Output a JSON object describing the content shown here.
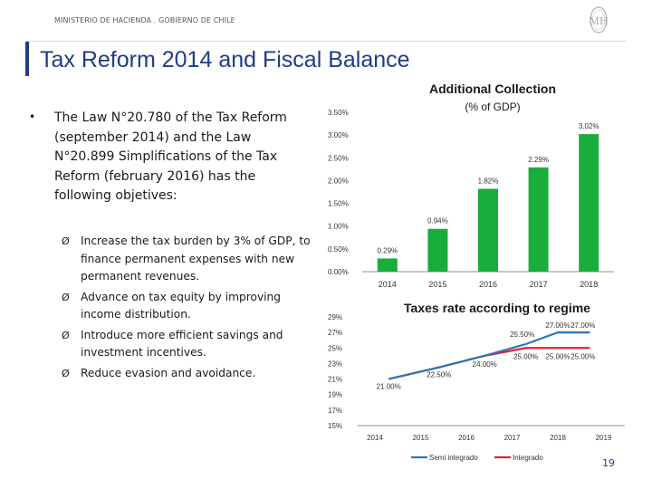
{
  "header": {
    "ministry": "MINISTERIO DE HACIENDA . GOBIERNO DE CHILE",
    "logo_text": "MH",
    "title": "Tax Reform 2014 and Fiscal Balance"
  },
  "left": {
    "bullet": "•",
    "intro": "The Law N°20.780 of the Tax Reform (september 2014) and the Law N°20.899 Simplifications of the Tax Reform (february 2016) has the following objetives:",
    "arrow_glyph": "Ø",
    "objectives": [
      "Increase the tax burden by 3% of GDP, to finance permanent expenses with new permanent revenues.",
      "Advance on tax equity by improving income distribution.",
      "Introduce more efficient savings and investment incentives.",
      "Reduce evasion and avoidance."
    ]
  },
  "colors": {
    "bar": "#19ad3c",
    "semi": "#2e75b6",
    "integ": "#e0242b",
    "title": "#1f3c88"
  },
  "chart_data": [
    {
      "type": "bar",
      "title": "Additional Collection",
      "subtitle": "(% of GDP)",
      "categories": [
        "2014",
        "2015",
        "2016",
        "2017",
        "2018"
      ],
      "values": [
        0.29,
        0.94,
        1.82,
        2.29,
        3.02
      ],
      "data_labels": [
        "0.29%",
        "0.94%",
        "1.82%",
        "2.29%",
        "3.02%"
      ],
      "yticks": [
        0,
        0.5,
        1.0,
        1.5,
        2.0,
        2.5,
        3.0,
        3.5
      ],
      "ytick_labels": [
        "0.00%",
        "0.50%",
        "1.00%",
        "1.50%",
        "2.00%",
        "2.50%",
        "3.00%",
        "3.50%"
      ],
      "ylim": [
        0,
        3.5
      ],
      "grid": false
    },
    {
      "type": "line",
      "title": "Taxes rate according to regime",
      "categories": [
        "2014",
        "2015",
        "2016",
        "2017",
        "2018",
        "2019"
      ],
      "series": [
        {
          "name": "Semi integrado",
          "x": [
            2014.3,
            2015.4,
            2016.4,
            2017.3,
            2018.0
          ],
          "values": [
            21.0,
            22.5,
            24.0,
            25.5,
            27.0
          ],
          "labels": [
            "",
            "",
            "",
            "25.50%",
            "27.00%"
          ]
        },
        {
          "name": "Integrado",
          "x": [
            2014.3,
            2015.4,
            2016.4,
            2017.3,
            2018.0
          ],
          "values": [
            21.0,
            22.5,
            24.0,
            25.0,
            25.0
          ],
          "labels": [
            "21.00%",
            "22.50%",
            "24.00%",
            "25.00%",
            "25.00%"
          ]
        }
      ],
      "extra_labels": [
        {
          "text": "27.00%",
          "x": 2018.55,
          "y": 27.0
        },
        {
          "text": "25.00%",
          "x": 2018.55,
          "y": 25.0
        }
      ],
      "yticks": [
        15,
        17,
        19,
        21,
        23,
        25,
        27,
        29
      ],
      "ytick_labels": [
        "15%",
        "17%",
        "19%",
        "21%",
        "23%",
        "25%",
        "27%",
        "29%"
      ],
      "ylim": [
        15,
        29
      ],
      "legend": "bottom",
      "grid": false
    }
  ],
  "footer": {
    "page_number": "19"
  }
}
